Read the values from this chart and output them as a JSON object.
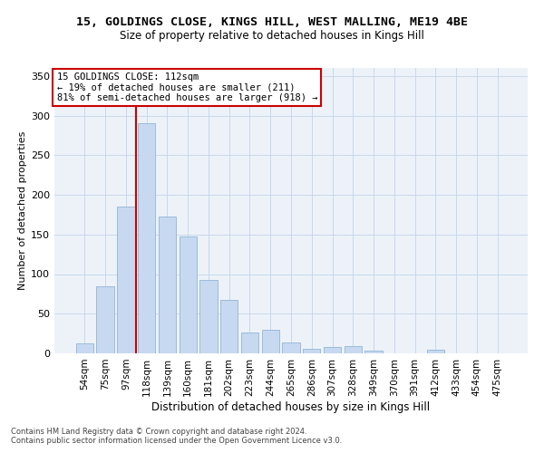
{
  "title": "15, GOLDINGS CLOSE, KINGS HILL, WEST MALLING, ME19 4BE",
  "subtitle": "Size of property relative to detached houses in Kings Hill",
  "xlabel": "Distribution of detached houses by size in Kings Hill",
  "ylabel": "Number of detached properties",
  "categories": [
    "54sqm",
    "75sqm",
    "97sqm",
    "118sqm",
    "139sqm",
    "160sqm",
    "181sqm",
    "202sqm",
    "223sqm",
    "244sqm",
    "265sqm",
    "286sqm",
    "307sqm",
    "328sqm",
    "349sqm",
    "370sqm",
    "391sqm",
    "412sqm",
    "433sqm",
    "454sqm",
    "475sqm"
  ],
  "values": [
    13,
    85,
    185,
    290,
    173,
    147,
    93,
    68,
    26,
    30,
    14,
    6,
    8,
    9,
    3,
    0,
    0,
    5,
    0,
    0,
    0
  ],
  "bar_color": "#c6d9f1",
  "bar_edge_color": "#92b4d4",
  "grid_color": "#c8d8ea",
  "bg_color": "#edf2f9",
  "vline_color": "#cc0000",
  "vline_x": 2.5,
  "annotation_line1": "15 GOLDINGS CLOSE: 112sqm",
  "annotation_line2": "← 19% of detached houses are smaller (211)",
  "annotation_line3": "81% of semi-detached houses are larger (918) →",
  "annotation_box_facecolor": "#ffffff",
  "annotation_box_edgecolor": "#cc0000",
  "footnote1": "Contains HM Land Registry data © Crown copyright and database right 2024.",
  "footnote2": "Contains public sector information licensed under the Open Government Licence v3.0.",
  "ylim": [
    0,
    360
  ],
  "yticks": [
    0,
    50,
    100,
    150,
    200,
    250,
    300,
    350
  ],
  "title_fontsize": 9.5,
  "subtitle_fontsize": 8.5,
  "xlabel_fontsize": 8.5,
  "ylabel_fontsize": 8,
  "tick_fontsize": 8,
  "xtick_fontsize": 7.5,
  "footnote_fontsize": 6.0
}
